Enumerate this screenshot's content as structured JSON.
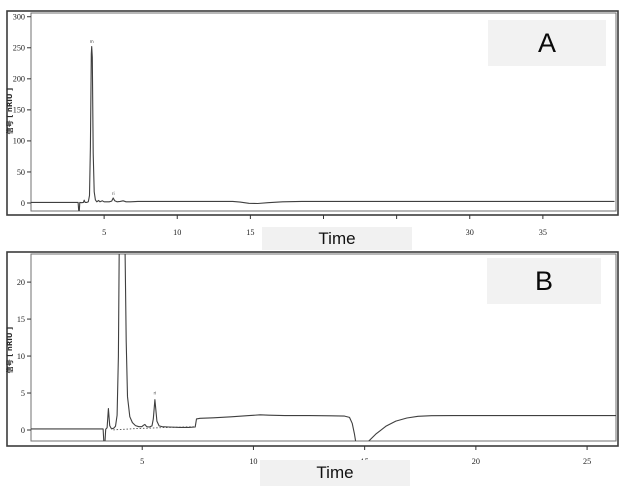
{
  "style": {
    "background": "#ffffff",
    "trace_color": "#3f3f3f",
    "outer_frame_color": "#3c3c3c",
    "plot_frame_color": "#707070",
    "tick_color": "#333333",
    "tick_label_color": "#222222",
    "label_box_bg": "#f2f2f2",
    "annotation_color": "#444444"
  },
  "chart_data": [
    {
      "type": "line",
      "panel_label": "A",
      "xlabel": "Time",
      "ylabel": "信号 [ nRIU ]",
      "xlim": [
        0,
        40
      ],
      "ylim": [
        -13,
        306
      ],
      "xticks": [
        5,
        10,
        15,
        20,
        25,
        30,
        35
      ],
      "yticks": [
        0,
        50,
        100,
        150,
        200,
        250,
        300
      ],
      "grid": false,
      "series": [
        {
          "name": "chromatogram-A",
          "points": [
            [
              0,
              1
            ],
            [
              1.5,
              1
            ],
            [
              3.0,
              1
            ],
            [
              3.22,
              1
            ],
            [
              3.26,
              -12
            ],
            [
              3.3,
              -12.5
            ],
            [
              3.34,
              1
            ],
            [
              3.45,
              0.5
            ],
            [
              3.58,
              1
            ],
            [
              3.64,
              4.5
            ],
            [
              3.7,
              1
            ],
            [
              3.82,
              1
            ],
            [
              3.92,
              2
            ],
            [
              4.0,
              12
            ],
            [
              4.06,
              90
            ],
            [
              4.12,
              240
            ],
            [
              4.15,
              252
            ],
            [
              4.19,
              235
            ],
            [
              4.25,
              80
            ],
            [
              4.32,
              18
            ],
            [
              4.4,
              5
            ],
            [
              4.5,
              2
            ],
            [
              4.62,
              4
            ],
            [
              4.72,
              2
            ],
            [
              4.88,
              3.5
            ],
            [
              5.0,
              2
            ],
            [
              5.18,
              2
            ],
            [
              5.35,
              2
            ],
            [
              5.52,
              3
            ],
            [
              5.62,
              8
            ],
            [
              5.72,
              3.5
            ],
            [
              5.88,
              2
            ],
            [
              6.1,
              2.5
            ],
            [
              6.3,
              3.5
            ],
            [
              6.5,
              2
            ],
            [
              6.8,
              2
            ],
            [
              7.3,
              2.5
            ],
            [
              8.5,
              2.5
            ],
            [
              10,
              2.5
            ],
            [
              12,
              2.5
            ],
            [
              13.8,
              2.5
            ],
            [
              14.3,
              1.5
            ],
            [
              14.9,
              -0.5
            ],
            [
              15.5,
              -0.8
            ],
            [
              16.2,
              0.5
            ],
            [
              17.2,
              2
            ],
            [
              18.5,
              2.5
            ],
            [
              22,
              2.5
            ],
            [
              26,
              2.5
            ],
            [
              30,
              2.5
            ],
            [
              35,
              2.5
            ],
            [
              39.9,
              2.5
            ]
          ]
        }
      ],
      "annotations": [
        {
          "x": 4.15,
          "y": 258,
          "text": "m"
        },
        {
          "x": 5.62,
          "y": 12.5,
          "text": "ri"
        }
      ]
    },
    {
      "type": "line",
      "panel_label": "B",
      "xlabel": "Time",
      "ylabel": "信号 [ nRIU ]",
      "xlim": [
        0,
        26.3
      ],
      "ylim": [
        -1.5,
        23.8
      ],
      "xticks": [
        5,
        10,
        15,
        20,
        25
      ],
      "yticks": [
        0,
        5,
        10,
        15,
        20
      ],
      "grid": false,
      "series": [
        {
          "name": "chromatogram-B",
          "points": [
            [
              0,
              0.15
            ],
            [
              2.0,
              0.15
            ],
            [
              3.18,
              0.15
            ],
            [
              3.24,
              0.15
            ],
            [
              3.28,
              -2.0
            ],
            [
              3.32,
              -2.0
            ],
            [
              3.36,
              0.1
            ],
            [
              3.42,
              0.3
            ],
            [
              3.48,
              2.9
            ],
            [
              3.54,
              0.6
            ],
            [
              3.62,
              0.15
            ],
            [
              3.72,
              0.25
            ],
            [
              3.8,
              0.5
            ],
            [
              3.87,
              2
            ],
            [
              3.93,
              10
            ],
            [
              3.97,
              26
            ],
            [
              4.22,
              26
            ],
            [
              4.28,
              12
            ],
            [
              4.34,
              4.5
            ],
            [
              4.44,
              1.8
            ],
            [
              4.56,
              1.0
            ],
            [
              4.7,
              0.6
            ],
            [
              4.85,
              0.45
            ],
            [
              4.98,
              0.45
            ],
            [
              5.06,
              0.65
            ],
            [
              5.12,
              0.75
            ],
            [
              5.2,
              0.45
            ],
            [
              5.32,
              0.4
            ],
            [
              5.44,
              0.55
            ],
            [
              5.5,
              1.5
            ],
            [
              5.57,
              4.1
            ],
            [
              5.66,
              1.2
            ],
            [
              5.76,
              0.55
            ],
            [
              5.9,
              0.45
            ],
            [
              6.2,
              0.4
            ],
            [
              6.7,
              0.35
            ],
            [
              7.1,
              0.35
            ],
            [
              7.38,
              0.4
            ],
            [
              7.44,
              1.5
            ],
            [
              7.6,
              1.58
            ],
            [
              8.2,
              1.65
            ],
            [
              9.0,
              1.78
            ],
            [
              9.8,
              1.95
            ],
            [
              10.3,
              2.05
            ],
            [
              10.7,
              2.0
            ],
            [
              11.4,
              1.95
            ],
            [
              12.5,
              1.95
            ],
            [
              13.5,
              1.92
            ],
            [
              14.1,
              1.88
            ],
            [
              14.32,
              1.7
            ],
            [
              14.44,
              0.9
            ],
            [
              14.54,
              -0.5
            ],
            [
              14.62,
              -2.0
            ],
            [
              14.75,
              -2.3
            ],
            [
              15.05,
              -2.3
            ],
            [
              15.15,
              -1.6
            ],
            [
              15.5,
              -0.55
            ],
            [
              15.95,
              0.5
            ],
            [
              16.4,
              1.2
            ],
            [
              16.9,
              1.62
            ],
            [
              17.4,
              1.85
            ],
            [
              18.0,
              1.93
            ],
            [
              19.0,
              1.95
            ],
            [
              21,
              1.95
            ],
            [
              23.5,
              1.95
            ],
            [
              26.3,
              1.95
            ]
          ]
        },
        {
          "name": "integration-baseline-B",
          "dashed": true,
          "points": [
            [
              3.7,
              0.02
            ],
            [
              4.8,
              0.2
            ],
            [
              6.0,
              0.33
            ],
            [
              7.35,
              0.45
            ]
          ]
        }
      ],
      "annotations": [
        {
          "x": 5.57,
          "y": 4.8,
          "text": "ri"
        }
      ]
    }
  ]
}
